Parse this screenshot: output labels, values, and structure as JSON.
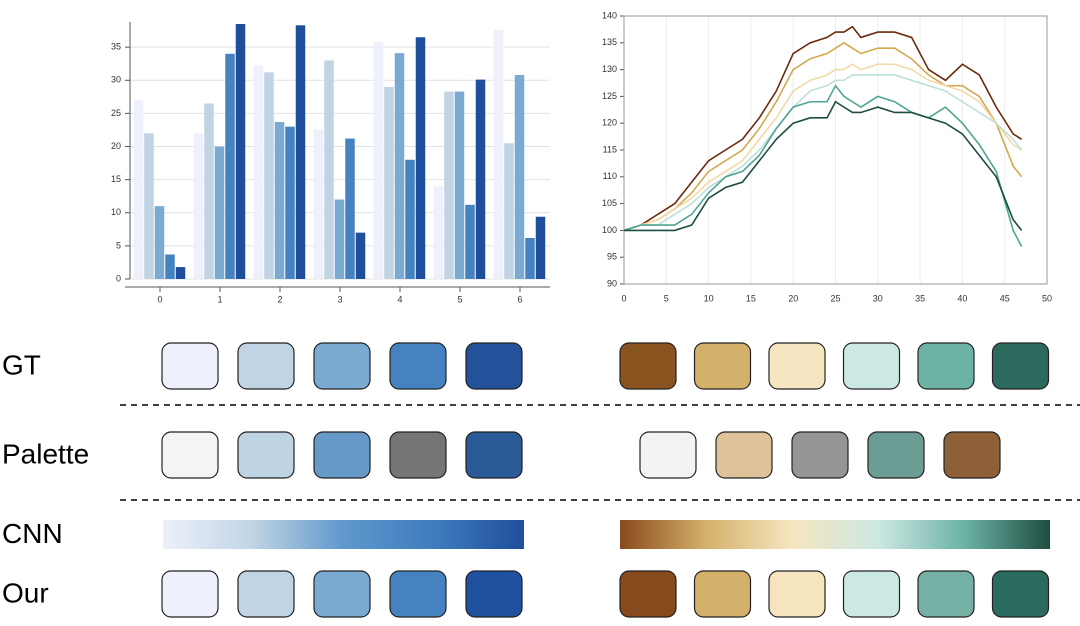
{
  "chart_data": [
    {
      "type": "bar",
      "categories": [
        "0",
        "1",
        "2",
        "3",
        "4",
        "5",
        "6"
      ],
      "series": [
        {
          "color": "#eef0fb",
          "values": [
            27,
            22,
            32.2,
            22.6,
            35.8,
            14,
            37.6
          ]
        },
        {
          "color": "#c0d4e4",
          "values": [
            22,
            26.5,
            31.2,
            33,
            29,
            28.3,
            20.5
          ]
        },
        {
          "color": "#7aaad2",
          "values": [
            11,
            20,
            23.7,
            12,
            34.1,
            28.3,
            30.8
          ]
        },
        {
          "color": "#4682bf",
          "values": [
            3.7,
            34,
            23,
            21.2,
            18,
            11.2,
            6.2
          ]
        },
        {
          "color": "#1f4e9c",
          "values": [
            1.8,
            38.5,
            38.3,
            7,
            36.5,
            30.1,
            9.4
          ]
        }
      ],
      "ylim": [
        0,
        38.8
      ],
      "yticks": [
        0,
        5,
        10,
        15,
        20,
        25,
        30,
        35
      ],
      "grid": true
    },
    {
      "type": "line",
      "x": [
        0,
        2,
        4,
        6,
        8,
        10,
        12,
        14,
        16,
        18,
        20,
        22,
        24,
        25,
        26,
        27,
        28,
        30,
        32,
        34,
        36,
        38,
        40,
        42,
        44,
        46,
        47
      ],
      "series": [
        {
          "color": "#6b2a0c",
          "values": [
            100,
            101,
            103,
            105,
            109,
            113,
            115,
            117,
            121,
            126,
            133,
            135,
            136,
            137,
            137,
            138,
            136,
            137,
            137,
            136,
            130,
            128,
            131,
            129,
            123,
            118,
            117
          ]
        },
        {
          "color": "#d4a84f",
          "values": [
            100,
            101,
            102,
            104,
            107,
            111,
            113,
            115,
            119,
            124,
            130,
            132,
            133,
            134,
            135,
            134,
            133,
            134,
            134,
            132,
            129,
            127,
            127,
            125,
            120,
            112,
            110
          ]
        },
        {
          "color": "#f2d9a8",
          "values": [
            100,
            101,
            102,
            104,
            106,
            109,
            111,
            113,
            117,
            121,
            126,
            128,
            129,
            130,
            130,
            131,
            130,
            131,
            131,
            130,
            128,
            127,
            126,
            124,
            120,
            116,
            115
          ]
        },
        {
          "color": "#bfe0da",
          "values": [
            100,
            101,
            101,
            103,
            105,
            108,
            110,
            112,
            115,
            119,
            123,
            126,
            127,
            128,
            128,
            129,
            129,
            129,
            129,
            128,
            127,
            126,
            124,
            122,
            120,
            117,
            115
          ]
        },
        {
          "color": "#4fa595",
          "values": [
            100,
            101,
            101,
            101,
            103,
            107,
            110,
            111,
            114,
            119,
            123,
            124,
            124,
            127,
            125,
            124,
            123,
            125,
            124,
            122,
            121,
            123,
            120,
            116,
            111,
            100,
            97
          ]
        },
        {
          "color": "#1d4d40",
          "values": [
            100,
            100,
            100,
            100,
            101,
            106,
            108,
            109,
            113,
            117,
            120,
            121,
            121,
            124,
            123,
            122,
            122,
            123,
            122,
            122,
            121,
            120,
            118,
            114,
            110,
            102,
            100
          ]
        }
      ],
      "xlim": [
        0,
        50
      ],
      "xticks": [
        0,
        5,
        10,
        15,
        20,
        25,
        30,
        35,
        40,
        45,
        50
      ],
      "ylim": [
        90,
        140
      ],
      "yticks": [
        90,
        95,
        100,
        105,
        110,
        115,
        120,
        125,
        130,
        135,
        140
      ],
      "grid": true
    }
  ],
  "rows": [
    {
      "label": "GT",
      "left": [
        "#eef0fb",
        "#c0d4e4",
        "#7aaad2",
        "#4682bf",
        "#23529a"
      ],
      "right": [
        "#8a5420",
        "#d4b16a",
        "#f5e5c0",
        "#cce8e2",
        "#6cb3a6",
        "#2b6a5d"
      ]
    },
    {
      "label": "Palette",
      "left": [
        "#f3f5f4",
        "#bed4e3",
        "#6699c8",
        "#757575",
        "#2a5a98"
      ],
      "right": [
        "#f3f3f3",
        "#dec39a",
        "#959595",
        "#6b9d95",
        "#8e6038"
      ]
    },
    {
      "label": "CNN",
      "gradient": true,
      "left": [
        "#eef0fb",
        "#c0d4e4",
        "#5f98cc",
        "#3f7cbd",
        "#1f4e9c"
      ],
      "right": [
        "#8a4a1c",
        "#d4b16a",
        "#f5e5c0",
        "#cce8e2",
        "#6cb3a6",
        "#1d4d40"
      ]
    },
    {
      "label": "Our",
      "left": [
        "#eef0fb",
        "#c0d4e4",
        "#7aaad2",
        "#4682bf",
        "#2051a0"
      ],
      "right": [
        "#864a1d",
        "#d4b16a",
        "#f5e4be",
        "#cce8e2",
        "#74b0a4",
        "#2a6a5f"
      ]
    }
  ]
}
